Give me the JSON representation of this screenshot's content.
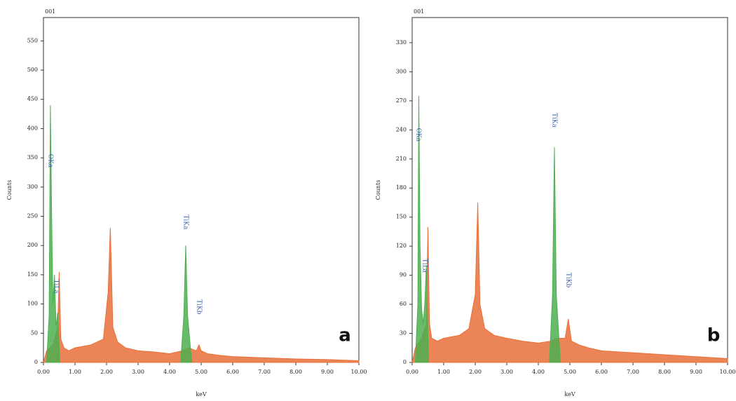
{
  "chart_data": [
    {
      "type": "area",
      "title": "001",
      "panel": "a",
      "xlabel": "keV",
      "ylabel": "Counts",
      "xlim": [
        0,
        10
      ],
      "ylim": [
        0,
        590
      ],
      "xticks": [
        {
          "value": 0,
          "label": "0.00"
        },
        {
          "value": 1,
          "label": "1.00"
        },
        {
          "value": 2,
          "label": "2.00"
        },
        {
          "value": 3,
          "label": "3.00"
        },
        {
          "value": 4,
          "label": "4.00"
        },
        {
          "value": 5,
          "label": "5.00"
        },
        {
          "value": 6,
          "label": "6.00"
        },
        {
          "value": 7,
          "label": "7.00"
        },
        {
          "value": 8,
          "label": "8.00"
        },
        {
          "value": 9,
          "label": "9.00"
        },
        {
          "value": 10,
          "label": "10.00"
        }
      ],
      "yticks": [
        0,
        50,
        100,
        150,
        200,
        250,
        300,
        350,
        400,
        450,
        500,
        550
      ],
      "series": [
        {
          "color": "#e8703a",
          "x": [
            0,
            0.1,
            0.3,
            0.45,
            0.5,
            0.55,
            0.65,
            0.8,
            1.0,
            1.5,
            1.9,
            2.05,
            2.12,
            2.2,
            2.35,
            2.6,
            3.0,
            3.5,
            4.0,
            4.4,
            4.6,
            4.85,
            4.93,
            5.0,
            5.2,
            5.6,
            6.0,
            7.0,
            8.0,
            9.0,
            10.0
          ],
          "values": [
            0,
            20,
            30,
            60,
            155,
            40,
            25,
            20,
            25,
            30,
            40,
            120,
            230,
            60,
            35,
            25,
            20,
            18,
            15,
            20,
            25,
            20,
            30,
            20,
            15,
            12,
            10,
            8,
            6,
            5,
            3
          ]
        },
        {
          "color": "#4caf50",
          "x": [
            0.1,
            0.18,
            0.22,
            0.26,
            0.3,
            0.35,
            0.4,
            0.45,
            0.52,
            2.5,
            4.35,
            4.45,
            4.51,
            4.57,
            4.7
          ],
          "values": [
            0,
            80,
            440,
            250,
            100,
            150,
            60,
            85,
            0,
            null,
            0,
            80,
            200,
            80,
            0
          ]
        }
      ],
      "annotations": [
        {
          "text": "OKa",
          "x": 0.22,
          "y": 345
        },
        {
          "text": "TiLa",
          "x": 0.4,
          "y": 130
        },
        {
          "text": "TiKa",
          "x": 4.51,
          "y": 240
        },
        {
          "text": "TiKb",
          "x": 4.93,
          "y": 95
        }
      ]
    },
    {
      "type": "area",
      "title": "001",
      "panel": "b",
      "xlabel": "keV",
      "ylabel": "Counts",
      "xlim": [
        0,
        10
      ],
      "ylim": [
        0,
        356
      ],
      "xticks": [
        {
          "value": 0,
          "label": "0.00"
        },
        {
          "value": 1,
          "label": "1.00"
        },
        {
          "value": 2,
          "label": "2.00"
        },
        {
          "value": 3,
          "label": "3.00"
        },
        {
          "value": 4,
          "label": "4.00"
        },
        {
          "value": 5,
          "label": "5.00"
        },
        {
          "value": 6,
          "label": "6.00"
        },
        {
          "value": 7,
          "label": "7.00"
        },
        {
          "value": 8,
          "label": "8.00"
        },
        {
          "value": 9,
          "label": "9.00"
        },
        {
          "value": 10,
          "label": "10.00"
        }
      ],
      "yticks": [
        0,
        30,
        60,
        90,
        120,
        150,
        180,
        210,
        240,
        270,
        300,
        330
      ],
      "series": [
        {
          "color": "#e8703a",
          "x": [
            0,
            0.1,
            0.3,
            0.45,
            0.5,
            0.55,
            0.62,
            0.8,
            1.0,
            1.5,
            1.8,
            2.0,
            2.08,
            2.15,
            2.3,
            2.6,
            3.0,
            3.5,
            4.0,
            4.4,
            4.6,
            4.85,
            4.95,
            5.05,
            5.3,
            5.6,
            6.0,
            7.0,
            8.0,
            9.0,
            10.0
          ],
          "values": [
            0,
            15,
            25,
            40,
            140,
            40,
            25,
            22,
            25,
            28,
            35,
            70,
            165,
            60,
            35,
            28,
            25,
            22,
            20,
            22,
            25,
            25,
            45,
            22,
            18,
            15,
            12,
            10,
            8,
            6,
            4
          ]
        },
        {
          "color": "#4caf50",
          "x": [
            0.1,
            0.18,
            0.21,
            0.25,
            0.3,
            0.35,
            0.4,
            0.45,
            0.52,
            2.5,
            4.35,
            4.45,
            4.51,
            4.57,
            4.7
          ],
          "values": [
            0,
            60,
            275,
            120,
            55,
            40,
            60,
            100,
            0,
            null,
            0,
            70,
            222,
            70,
            0
          ]
        }
      ],
      "annotations": [
        {
          "text": "OKa",
          "x": 0.2,
          "y": 235
        },
        {
          "text": "TiLa",
          "x": 0.4,
          "y": 100
        },
        {
          "text": "TiKa",
          "x": 4.51,
          "y": 250
        },
        {
          "text": "TiKb",
          "x": 4.95,
          "y": 85
        }
      ]
    }
  ]
}
